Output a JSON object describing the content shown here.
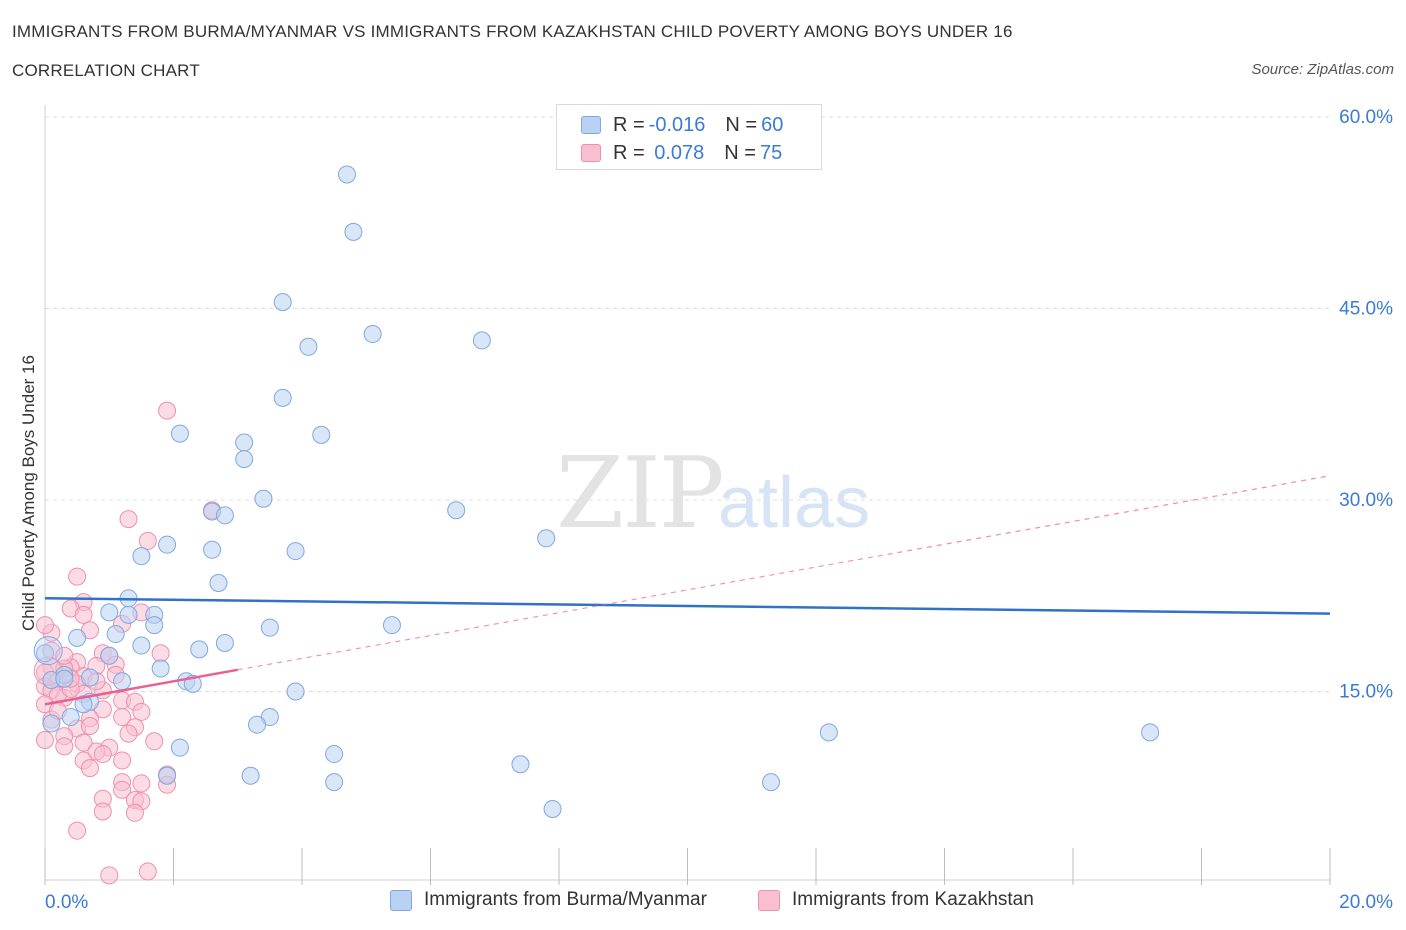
{
  "header": {
    "title": "IMMIGRANTS FROM BURMA/MYANMAR VS IMMIGRANTS FROM KAZAKHSTAN CHILD POVERTY AMONG BOYS UNDER 16",
    "subtitle": "CORRELATION CHART",
    "source": "Source: ZipAtlas.com"
  },
  "legend_box": {
    "rows": [
      {
        "r_label": "R = ",
        "r_value": "-0.016",
        "n_label": "N = ",
        "n_value": "60"
      },
      {
        "r_label": "R = ",
        "r_value": " 0.078",
        "n_label": "N = ",
        "n_value": "75"
      }
    ]
  },
  "watermark": {
    "zip": "ZIP",
    "atlas": "atlas"
  },
  "colors": {
    "blue_fill": "#b9d2f3",
    "blue_stroke": "#7fa8e0",
    "blue_line": "#2f72c6",
    "pink_fill": "#f7bfd0",
    "pink_stroke": "#ee90ae",
    "pink_line": "#e8628f",
    "axis_text": "#3a7bd5",
    "grid": "#dcdcdc"
  },
  "chart_data": {
    "type": "scatter",
    "title": "IMMIGRANTS FROM BURMA/MYANMAR VS IMMIGRANTS FROM KAZAKHSTAN CHILD POVERTY AMONG BOYS UNDER 16",
    "xlabel": "",
    "ylabel": "Child Poverty Among Boys Under 16",
    "xlim": [
      0,
      20
    ],
    "ylim": [
      0,
      60
    ],
    "x_tick_labels": [
      "0.0%",
      "20.0%"
    ],
    "y_ticks": [
      15,
      30,
      45,
      60
    ],
    "y_tick_labels": [
      "15.0%",
      "30.0%",
      "45.0%",
      "60.0%"
    ],
    "grid": true,
    "series": [
      {
        "name": "Immigrants from Burma/Myanmar",
        "color": "blue",
        "R": -0.016,
        "N": 60,
        "trend": {
          "x": [
            0,
            20
          ],
          "y": [
            22.3,
            21.1
          ],
          "style": "solid"
        },
        "points": [
          [
            4.7,
            55.5
          ],
          [
            4.8,
            51.0
          ],
          [
            3.7,
            45.5
          ],
          [
            5.1,
            43.0
          ],
          [
            6.8,
            42.5
          ],
          [
            4.1,
            42.0
          ],
          [
            3.7,
            38.0
          ],
          [
            2.1,
            35.2
          ],
          [
            4.3,
            35.1
          ],
          [
            3.1,
            34.5
          ],
          [
            3.1,
            33.2
          ],
          [
            3.4,
            30.1
          ],
          [
            2.6,
            29.1
          ],
          [
            2.8,
            28.8
          ],
          [
            6.4,
            29.2
          ],
          [
            7.8,
            27.0
          ],
          [
            1.9,
            26.5
          ],
          [
            1.5,
            25.6
          ],
          [
            2.6,
            26.1
          ],
          [
            3.9,
            26.0
          ],
          [
            2.7,
            23.5
          ],
          [
            1.3,
            22.3
          ],
          [
            1.0,
            21.2
          ],
          [
            1.3,
            21.0
          ],
          [
            1.7,
            21.0
          ],
          [
            1.7,
            20.2
          ],
          [
            3.5,
            20.0
          ],
          [
            5.4,
            20.2
          ],
          [
            1.1,
            19.5
          ],
          [
            0.5,
            19.2
          ],
          [
            1.5,
            18.6
          ],
          [
            2.8,
            18.8
          ],
          [
            2.4,
            18.3
          ],
          [
            0.0,
            18.0
          ],
          [
            1.0,
            17.8
          ],
          [
            1.8,
            16.8
          ],
          [
            0.3,
            16.3
          ],
          [
            0.7,
            16.1
          ],
          [
            1.2,
            15.8
          ],
          [
            2.2,
            15.8
          ],
          [
            2.3,
            15.6
          ],
          [
            3.9,
            15.0
          ],
          [
            0.7,
            14.2
          ],
          [
            0.4,
            13.0
          ],
          [
            3.5,
            13.0
          ],
          [
            3.3,
            12.4
          ],
          [
            12.2,
            11.8
          ],
          [
            17.2,
            11.8
          ],
          [
            2.1,
            10.6
          ],
          [
            4.5,
            10.1
          ],
          [
            7.4,
            9.3
          ],
          [
            1.9,
            8.4
          ],
          [
            3.2,
            8.4
          ],
          [
            4.5,
            7.9
          ],
          [
            11.3,
            7.9
          ],
          [
            7.9,
            5.8
          ],
          [
            0.1,
            15.9
          ],
          [
            0.3,
            16.0
          ],
          [
            0.1,
            12.5
          ],
          [
            0.6,
            14.0
          ]
        ]
      },
      {
        "name": "Immigrants from Kazakhstan",
        "color": "pink",
        "R": 0.078,
        "N": 75,
        "trend": {
          "x": [
            0,
            3.0
          ],
          "y": [
            14.0,
            16.7
          ],
          "style": "solid",
          "extension": {
            "x": [
              3.0,
              20
            ],
            "y": [
              16.7,
              31.9
            ],
            "style": "dashed"
          }
        },
        "points": [
          [
            1.9,
            37.0
          ],
          [
            1.3,
            28.5
          ],
          [
            1.6,
            26.8
          ],
          [
            2.6,
            29.2
          ],
          [
            0.5,
            24.0
          ],
          [
            0.6,
            22.0
          ],
          [
            0.4,
            21.5
          ],
          [
            0.6,
            21.0
          ],
          [
            1.5,
            21.2
          ],
          [
            1.2,
            20.3
          ],
          [
            0.7,
            19.8
          ],
          [
            0.1,
            19.6
          ],
          [
            0.0,
            20.2
          ],
          [
            0.9,
            18.0
          ],
          [
            1.8,
            18.0
          ],
          [
            1.0,
            17.8
          ],
          [
            0.5,
            17.3
          ],
          [
            1.1,
            17.1
          ],
          [
            0.8,
            17.0
          ],
          [
            0.1,
            16.9
          ],
          [
            0.4,
            16.9
          ],
          [
            0.3,
            16.8
          ],
          [
            0.0,
            16.5
          ],
          [
            0.6,
            16.2
          ],
          [
            0.2,
            15.8
          ],
          [
            0.0,
            15.4
          ],
          [
            0.5,
            15.6
          ],
          [
            0.1,
            15.1
          ],
          [
            0.9,
            15.1
          ],
          [
            0.6,
            14.8
          ],
          [
            0.3,
            14.5
          ],
          [
            0.2,
            14.7
          ],
          [
            0.0,
            14.0
          ],
          [
            1.2,
            14.3
          ],
          [
            1.4,
            14.2
          ],
          [
            0.9,
            13.6
          ],
          [
            1.5,
            13.4
          ],
          [
            1.2,
            13.0
          ],
          [
            0.7,
            12.9
          ],
          [
            0.1,
            12.8
          ],
          [
            0.5,
            12.1
          ],
          [
            1.4,
            12.2
          ],
          [
            0.3,
            11.5
          ],
          [
            0.0,
            11.2
          ],
          [
            0.6,
            11.0
          ],
          [
            1.7,
            11.1
          ],
          [
            0.3,
            10.7
          ],
          [
            1.0,
            10.6
          ],
          [
            0.8,
            10.3
          ],
          [
            0.9,
            10.1
          ],
          [
            0.6,
            9.6
          ],
          [
            1.2,
            9.6
          ],
          [
            0.7,
            9.0
          ],
          [
            1.9,
            8.5
          ],
          [
            1.2,
            7.9
          ],
          [
            1.5,
            7.8
          ],
          [
            1.9,
            7.7
          ],
          [
            1.2,
            7.3
          ],
          [
            0.9,
            6.6
          ],
          [
            1.4,
            6.5
          ],
          [
            1.5,
            6.4
          ],
          [
            0.9,
            5.6
          ],
          [
            1.4,
            5.5
          ],
          [
            0.5,
            4.1
          ],
          [
            1.6,
            0.9
          ],
          [
            1.0,
            0.6
          ],
          [
            0.2,
            13.5
          ],
          [
            0.4,
            15.2
          ],
          [
            0.8,
            15.8
          ],
          [
            0.1,
            18.2
          ],
          [
            1.1,
            16.3
          ],
          [
            0.3,
            17.8
          ],
          [
            0.7,
            12.3
          ],
          [
            1.3,
            11.7
          ],
          [
            0.4,
            16.0
          ]
        ]
      }
    ]
  },
  "bottom_legend": {
    "items": [
      "Immigrants from Burma/Myanmar",
      "Immigrants from Kazakhstan"
    ]
  }
}
